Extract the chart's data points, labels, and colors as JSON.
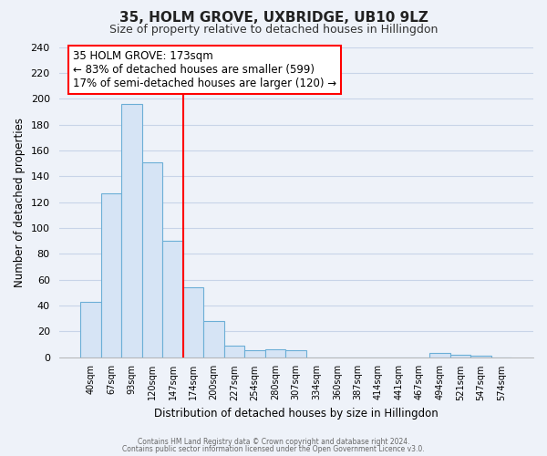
{
  "title": "35, HOLM GROVE, UXBRIDGE, UB10 9LZ",
  "subtitle": "Size of property relative to detached houses in Hillingdon",
  "bar_labels": [
    "40sqm",
    "67sqm",
    "93sqm",
    "120sqm",
    "147sqm",
    "174sqm",
    "200sqm",
    "227sqm",
    "254sqm",
    "280sqm",
    "307sqm",
    "334sqm",
    "360sqm",
    "387sqm",
    "414sqm",
    "441sqm",
    "467sqm",
    "494sqm",
    "521sqm",
    "547sqm",
    "574sqm"
  ],
  "bar_values": [
    43,
    127,
    196,
    151,
    90,
    54,
    28,
    9,
    5,
    6,
    5,
    0,
    0,
    0,
    0,
    0,
    0,
    3,
    2,
    1,
    0
  ],
  "bar_color": "#d6e4f5",
  "bar_edge_color": "#6baed6",
  "reference_line_index": 5,
  "ylabel": "Number of detached properties",
  "xlabel": "Distribution of detached houses by size in Hillingdon",
  "ylim": [
    0,
    240
  ],
  "yticks": [
    0,
    20,
    40,
    60,
    80,
    100,
    120,
    140,
    160,
    180,
    200,
    220,
    240
  ],
  "annotation_title": "35 HOLM GROVE: 173sqm",
  "annotation_line1": "← 83% of detached houses are smaller (599)",
  "annotation_line2": "17% of semi-detached houses are larger (120) →",
  "footer1": "Contains HM Land Registry data © Crown copyright and database right 2024.",
  "footer2": "Contains public sector information licensed under the Open Government Licence v3.0.",
  "background_color": "#eef2f9",
  "plot_bg_color": "#eef2f9",
  "grid_color": "#c8d4e8"
}
